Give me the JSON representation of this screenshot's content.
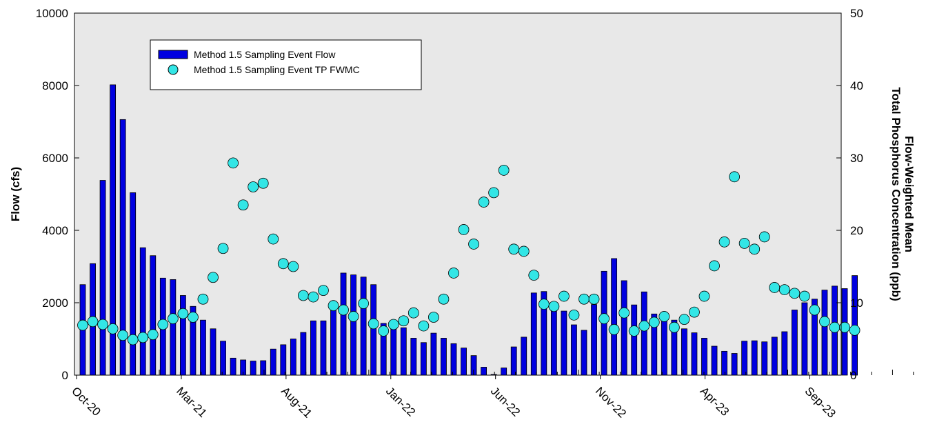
{
  "chart_data": {
    "type": "bar",
    "title": "",
    "xlabel": "",
    "ylabel": "Flow (cfs)",
    "y2label_line1": "Flow-Weighted Mean",
    "y2label_line2": "Total Phosphorus Concentration (ppb)",
    "ylim": [
      0,
      10000
    ],
    "y2lim": [
      0,
      50
    ],
    "yticks": [
      0,
      2000,
      4000,
      6000,
      8000,
      10000
    ],
    "y2ticks": [
      0,
      10,
      20,
      30,
      40,
      50
    ],
    "xtick_labels": [
      "Oct-20",
      "Mar-21",
      "Aug-21",
      "Jan-22",
      "Jun-22",
      "Nov-22",
      "Apr-23",
      "Sep-23"
    ],
    "grid": false,
    "legend_position": "top-left",
    "plot_background": "#e8e8e8",
    "series": [
      {
        "name": "Method 1.5 Sampling Event Flow",
        "type": "bar",
        "axis": "left",
        "color": "#0000e0",
        "values": [
          2500,
          3080,
          5380,
          8020,
          7060,
          5040,
          3520,
          3300,
          2680,
          2640,
          2200,
          1900,
          1520,
          1280,
          940,
          470,
          420,
          390,
          400,
          720,
          840,
          1000,
          1180,
          1500,
          1500,
          1850,
          2820,
          2770,
          2710,
          2500,
          1430,
          1380,
          1310,
          1020,
          900,
          1160,
          1020,
          870,
          750,
          540,
          220,
          20,
          200,
          780,
          1050,
          2270,
          2310,
          1820,
          1770,
          1390,
          1240,
          1950,
          2870,
          3220,
          2610,
          1940,
          2300,
          1690,
          1620,
          1520,
          1280,
          1170,
          1020,
          800,
          660,
          600,
          940,
          950,
          920,
          1050,
          1200,
          1800,
          2000,
          2100,
          2350,
          2460,
          2390,
          2750
        ]
      },
      {
        "name": "Method 1.5 Sampling Event TP FWMC",
        "type": "scatter",
        "axis": "right",
        "color": "#33e6e6",
        "values": [
          6.9,
          7.4,
          7.0,
          6.4,
          5.5,
          4.9,
          5.2,
          5.6,
          7.0,
          7.8,
          8.5,
          8.0,
          10.5,
          13.5,
          17.5,
          29.3,
          23.5,
          26.0,
          26.5,
          18.8,
          15.4,
          15.0,
          11.0,
          10.8,
          11.7,
          9.6,
          9.0,
          8.1,
          9.9,
          7.1,
          6.1,
          7.0,
          7.5,
          8.6,
          6.8,
          8.0,
          10.5,
          14.1,
          20.1,
          18.1,
          23.9,
          25.2,
          28.3,
          17.4,
          17.1,
          13.8,
          9.8,
          9.5,
          10.9,
          8.3,
          10.5,
          10.5,
          7.8,
          6.3,
          8.6,
          6.1,
          6.8,
          7.3,
          8.1,
          6.6,
          7.7,
          8.7,
          10.9,
          15.1,
          18.4,
          27.4,
          18.2,
          17.4,
          19.1,
          12.1,
          11.8,
          11.3,
          10.9,
          9.0,
          7.4,
          6.6,
          6.6,
          6.2
        ]
      }
    ]
  }
}
